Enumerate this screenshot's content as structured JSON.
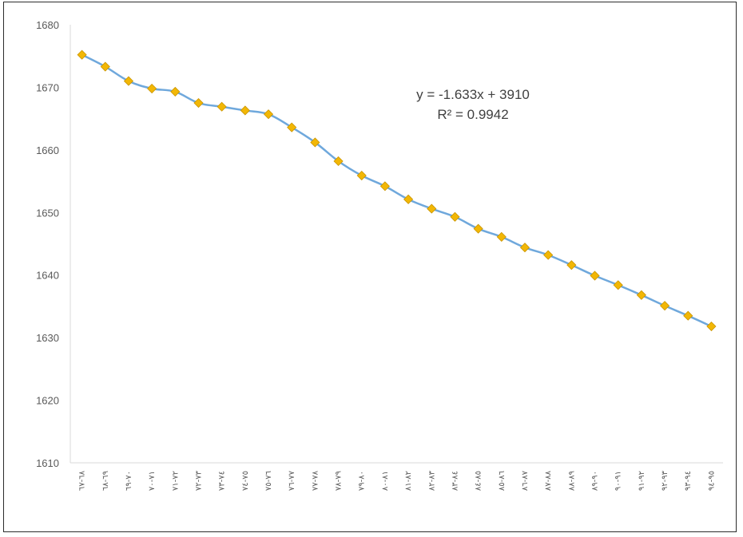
{
  "chart_data": {
    "type": "line",
    "title": "",
    "xlabel": "",
    "ylabel": "",
    "categories": [
      "٦٨-٦٧",
      "٦٩-٦٨",
      "٧٠-٦٩",
      "٧١-٧٠",
      "٧٢-٧١",
      "٧٣-٧٢",
      "٧٤-٧٣",
      "٧٥-٧٤",
      "٧٦-٧٥",
      "٧٧-٧٦",
      "٧٨-٧٧",
      "٧٩-٧٨",
      "٨٠-٧٩",
      "٨١-٨٠",
      "٨٢-٨١",
      "٨٣-٨٢",
      "٨٤-٨٣",
      "٨٥-٨٤",
      "٨٦-٨٥",
      "٨٧-٨٦",
      "٨٨-٨٧",
      "٨٩-٨٨",
      "٩٠-٨٩",
      "٩١-٩٠",
      "٩٢-٩١",
      "٩٣-٩٢",
      "٩٤-٩٣",
      "٩٥-٩٤"
    ],
    "series": [
      {
        "name": "",
        "values": [
          1675.2,
          1673.3,
          1671.0,
          1669.8,
          1669.3,
          1667.5,
          1666.9,
          1666.3,
          1665.7,
          1663.6,
          1661.2,
          1658.2,
          1655.9,
          1654.2,
          1652.1,
          1650.6,
          1649.3,
          1647.4,
          1646.1,
          1644.4,
          1643.2,
          1641.6,
          1639.9,
          1638.4,
          1636.8,
          1635.1,
          1633.5,
          1631.8
        ]
      }
    ],
    "ylim": [
      1610,
      1680
    ],
    "yticks": [
      "1610",
      "1620",
      "1630",
      "1640",
      "1650",
      "1660",
      "1670",
      "1680"
    ],
    "grid": false,
    "legend": "none",
    "annotations": [
      "y = -1.633x + 3910",
      "R² = 0.9942"
    ],
    "colors": {
      "line": "#6fa8dc",
      "marker": "#f2b705",
      "marker_edge": "#c99400",
      "axis": "#d9d9d9",
      "text": "#595959"
    }
  }
}
